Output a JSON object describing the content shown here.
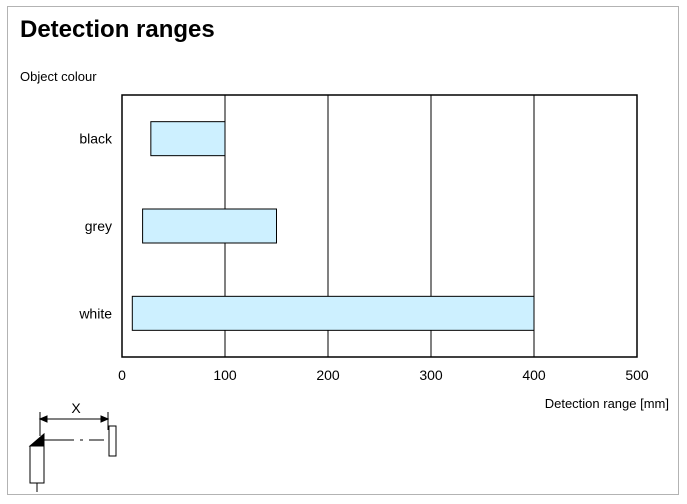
{
  "chart_data": {
    "type": "bar",
    "orientation": "horizontal",
    "title": "Detection ranges",
    "ylabel": "Object colour",
    "xlabel": "Detection range [mm]",
    "categories": [
      "black",
      "grey",
      "white"
    ],
    "ranges": [
      {
        "category": "black",
        "start": 28,
        "end": 100
      },
      {
        "category": "grey",
        "start": 20,
        "end": 150
      },
      {
        "category": "white",
        "start": 10,
        "end": 400
      }
    ],
    "xlim": [
      0,
      500
    ],
    "xticks": [
      0,
      100,
      200,
      300,
      400,
      500
    ],
    "grid": true,
    "bar_color": "#cdf0ff"
  },
  "diagram": {
    "distance_label": "X"
  }
}
